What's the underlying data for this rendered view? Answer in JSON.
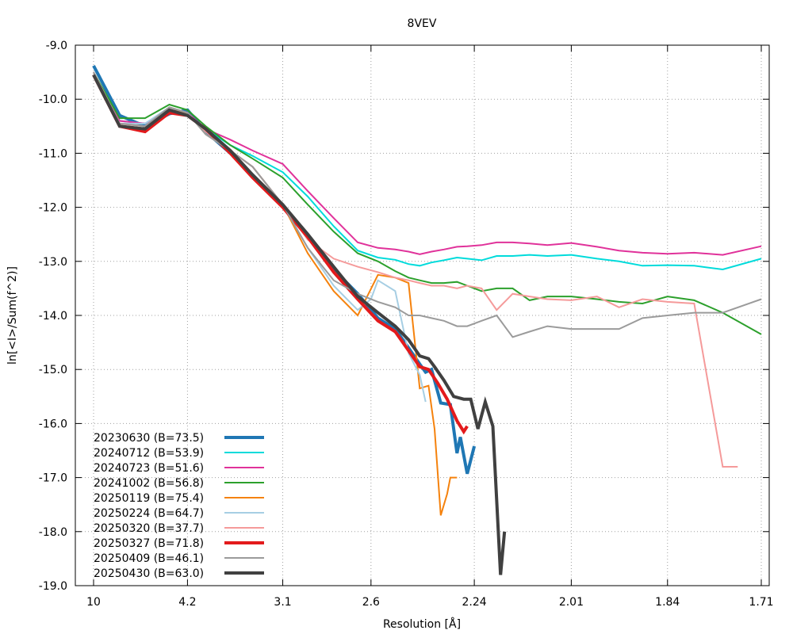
{
  "chart_data": {
    "type": "line",
    "title": "8VEV",
    "xlabel": "Resolution [Å]",
    "ylabel": "ln[<I>/Sum(f^2)]",
    "ylim": [
      -19.0,
      -9.0
    ],
    "x_scale": "1/d^2 (resolution shown as d in Å)",
    "x_tick_labels": [
      "10",
      "4.2",
      "3.1",
      "2.6",
      "2.24",
      "2.01",
      "1.84",
      "1.71"
    ],
    "y_tick_labels": [
      "-9.0",
      "-10.0",
      "-11.0",
      "-12.0",
      "-13.0",
      "-14.0",
      "-15.0",
      "-16.0",
      "-17.0",
      "-18.0",
      "-19.0"
    ],
    "grid": true,
    "legend_position": "bottom-left",
    "series": [
      {
        "name": "20230630 (B=73.5)",
        "color": "#1f77b4",
        "width": 4,
        "x": [
          10,
          6.6,
          5.3,
          4.58,
          4.2,
          3.9,
          3.58,
          3.35,
          3.1,
          2.93,
          2.78,
          2.66,
          2.57,
          2.5,
          2.45,
          2.41,
          2.39,
          2.37,
          2.34,
          2.31,
          2.29,
          2.28,
          2.26,
          2.24
        ],
        "y": [
          -9.38,
          -10.3,
          -10.5,
          -10.27,
          -10.2,
          -10.6,
          -11.0,
          -11.4,
          -11.97,
          -12.5,
          -13.15,
          -13.6,
          -14.05,
          -14.25,
          -14.6,
          -14.9,
          -15.05,
          -15.0,
          -15.62,
          -15.65,
          -16.55,
          -16.25,
          -16.93,
          -16.42
        ]
      },
      {
        "name": "20240712 (B=53.9)",
        "color": "#00dbdb",
        "width": 2,
        "x": [
          10,
          6.6,
          5.3,
          4.58,
          4.2,
          3.9,
          3.58,
          3.35,
          3.1,
          2.93,
          2.78,
          2.66,
          2.57,
          2.5,
          2.45,
          2.41,
          2.37,
          2.33,
          2.29,
          2.26,
          2.22,
          2.18,
          2.14,
          2.1,
          2.06,
          2.01,
          1.96,
          1.92,
          1.88,
          1.84,
          1.8,
          1.76,
          1.71
        ],
        "y": [
          -9.5,
          -10.4,
          -10.45,
          -10.2,
          -10.25,
          -10.55,
          -10.85,
          -11.05,
          -11.35,
          -11.8,
          -12.35,
          -12.8,
          -12.93,
          -12.97,
          -13.05,
          -13.08,
          -13.02,
          -12.98,
          -12.93,
          -12.95,
          -12.98,
          -12.9,
          -12.9,
          -12.88,
          -12.9,
          -12.88,
          -12.95,
          -13.0,
          -13.08,
          -13.07,
          -13.08,
          -13.15,
          -12.95
        ]
      },
      {
        "name": "20240723 (B=51.6)",
        "color": "#e0329a",
        "width": 2,
        "x": [
          10,
          6.6,
          5.3,
          4.58,
          4.2,
          3.9,
          3.58,
          3.35,
          3.1,
          2.93,
          2.78,
          2.66,
          2.57,
          2.5,
          2.45,
          2.41,
          2.37,
          2.33,
          2.29,
          2.26,
          2.22,
          2.18,
          2.14,
          2.1,
          2.06,
          2.01,
          1.96,
          1.92,
          1.88,
          1.84,
          1.8,
          1.76,
          1.71
        ],
        "y": [
          -9.5,
          -10.4,
          -10.45,
          -10.2,
          -10.25,
          -10.55,
          -10.75,
          -10.95,
          -11.2,
          -11.7,
          -12.2,
          -12.65,
          -12.75,
          -12.78,
          -12.82,
          -12.87,
          -12.82,
          -12.78,
          -12.73,
          -12.72,
          -12.7,
          -12.65,
          -12.65,
          -12.67,
          -12.7,
          -12.66,
          -12.73,
          -12.8,
          -12.84,
          -12.86,
          -12.84,
          -12.88,
          -12.72
        ]
      },
      {
        "name": "20241002 (B=56.8)",
        "color": "#2ca02c",
        "width": 2,
        "x": [
          10,
          6.6,
          5.3,
          4.58,
          4.2,
          3.9,
          3.58,
          3.35,
          3.1,
          2.93,
          2.78,
          2.66,
          2.57,
          2.5,
          2.45,
          2.41,
          2.37,
          2.33,
          2.29,
          2.26,
          2.22,
          2.18,
          2.14,
          2.1,
          2.06,
          2.01,
          1.96,
          1.92,
          1.88,
          1.84,
          1.8,
          1.76,
          1.71
        ],
        "y": [
          -9.5,
          -10.35,
          -10.35,
          -10.1,
          -10.2,
          -10.5,
          -10.85,
          -11.1,
          -11.45,
          -11.95,
          -12.45,
          -12.85,
          -13.0,
          -13.18,
          -13.3,
          -13.35,
          -13.4,
          -13.4,
          -13.38,
          -13.45,
          -13.55,
          -13.5,
          -13.5,
          -13.72,
          -13.65,
          -13.65,
          -13.7,
          -13.75,
          -13.78,
          -13.65,
          -13.72,
          -13.95,
          -14.35
        ]
      },
      {
        "name": "20250119 (B=75.4)",
        "color": "#f5820d",
        "width": 2,
        "x": [
          10,
          6.6,
          5.3,
          4.58,
          4.2,
          3.9,
          3.58,
          3.35,
          3.1,
          2.93,
          2.78,
          2.66,
          2.57,
          2.5,
          2.45,
          2.41,
          2.38,
          2.36,
          2.34,
          2.32,
          2.31,
          2.29
        ],
        "y": [
          -9.5,
          -10.45,
          -10.5,
          -10.2,
          -10.25,
          -10.65,
          -10.95,
          -11.25,
          -11.95,
          -12.85,
          -13.55,
          -14.0,
          -13.25,
          -13.3,
          -13.4,
          -15.35,
          -15.3,
          -16.1,
          -17.7,
          -17.3,
          -17.0,
          -17.0
        ]
      },
      {
        "name": "20250224 (B=64.7)",
        "color": "#a6cee3",
        "width": 2,
        "x": [
          10,
          6.6,
          5.3,
          4.58,
          4.2,
          3.9,
          3.58,
          3.35,
          3.1,
          2.93,
          2.78,
          2.66,
          2.6,
          2.57,
          2.5,
          2.45,
          2.41,
          2.39
        ],
        "y": [
          -9.5,
          -10.45,
          -10.45,
          -10.15,
          -10.25,
          -10.65,
          -10.95,
          -11.25,
          -11.95,
          -12.75,
          -13.45,
          -13.9,
          -13.7,
          -13.35,
          -13.55,
          -14.7,
          -15.1,
          -15.6
        ]
      },
      {
        "name": "20250320 (B=37.7)",
        "color": "#f59a9a",
        "width": 2,
        "x": [
          10,
          6.6,
          5.3,
          4.58,
          4.2,
          3.9,
          3.58,
          3.35,
          3.1,
          2.93,
          2.78,
          2.66,
          2.57,
          2.5,
          2.45,
          2.41,
          2.37,
          2.33,
          2.29,
          2.26,
          2.22,
          2.18,
          2.14,
          2.1,
          2.06,
          2.01,
          1.96,
          1.92,
          1.88,
          1.84,
          1.8,
          1.76,
          1.74
        ],
        "y": [
          -9.5,
          -10.45,
          -10.5,
          -10.15,
          -10.25,
          -10.6,
          -10.95,
          -11.25,
          -11.95,
          -12.6,
          -12.95,
          -13.1,
          -13.2,
          -13.3,
          -13.35,
          -13.4,
          -13.45,
          -13.45,
          -13.5,
          -13.45,
          -13.5,
          -13.9,
          -13.6,
          -13.65,
          -13.7,
          -13.72,
          -13.65,
          -13.85,
          -13.7,
          -13.75,
          -13.78,
          -16.8,
          -16.8
        ]
      },
      {
        "name": "20250327 (B=71.8)",
        "color": "#e31a1c",
        "width": 4,
        "x": [
          10,
          6.6,
          5.3,
          4.58,
          4.2,
          3.9,
          3.58,
          3.35,
          3.1,
          2.93,
          2.78,
          2.66,
          2.57,
          2.5,
          2.45,
          2.41,
          2.38,
          2.35,
          2.32,
          2.29,
          2.27,
          2.26
        ],
        "y": [
          -9.55,
          -10.5,
          -10.6,
          -10.25,
          -10.3,
          -10.55,
          -11.0,
          -11.45,
          -12.0,
          -12.55,
          -13.2,
          -13.7,
          -14.1,
          -14.3,
          -14.65,
          -14.95,
          -15.0,
          -15.25,
          -15.55,
          -15.95,
          -16.15,
          -16.05
        ]
      },
      {
        "name": "20250409 (B=46.1)",
        "color": "#9b9b9b",
        "width": 2,
        "x": [
          10,
          6.6,
          5.3,
          4.58,
          4.2,
          3.9,
          3.58,
          3.35,
          3.1,
          2.93,
          2.78,
          2.66,
          2.57,
          2.5,
          2.45,
          2.41,
          2.37,
          2.33,
          2.29,
          2.26,
          2.22,
          2.18,
          2.14,
          2.1,
          2.06,
          2.01,
          1.96,
          1.92,
          1.88,
          1.84,
          1.8,
          1.76,
          1.71
        ],
        "y": [
          -9.5,
          -10.45,
          -10.5,
          -10.15,
          -10.25,
          -10.65,
          -10.95,
          -11.25,
          -11.95,
          -12.75,
          -13.35,
          -13.6,
          -13.75,
          -13.85,
          -14.0,
          -14.0,
          -14.05,
          -14.1,
          -14.2,
          -14.2,
          -14.1,
          -14.0,
          -14.4,
          -14.3,
          -14.2,
          -14.25,
          -14.25,
          -14.25,
          -14.05,
          -14.0,
          -13.95,
          -13.95,
          -13.7
        ]
      },
      {
        "name": "20250430 (B=63.0)",
        "color": "#404040",
        "width": 4,
        "x": [
          10,
          6.6,
          5.3,
          4.58,
          4.2,
          3.9,
          3.58,
          3.35,
          3.1,
          2.93,
          2.78,
          2.66,
          2.57,
          2.5,
          2.45,
          2.41,
          2.38,
          2.36,
          2.33,
          2.3,
          2.27,
          2.25,
          2.23,
          2.21,
          2.19,
          2.17,
          2.16
        ],
        "y": [
          -9.55,
          -10.5,
          -10.55,
          -10.2,
          -10.3,
          -10.55,
          -10.95,
          -11.4,
          -11.95,
          -12.5,
          -13.1,
          -13.65,
          -13.95,
          -14.2,
          -14.45,
          -14.75,
          -14.8,
          -14.95,
          -15.2,
          -15.5,
          -15.55,
          -15.55,
          -16.1,
          -15.6,
          -16.05,
          -18.8,
          -18.0
        ]
      }
    ]
  }
}
